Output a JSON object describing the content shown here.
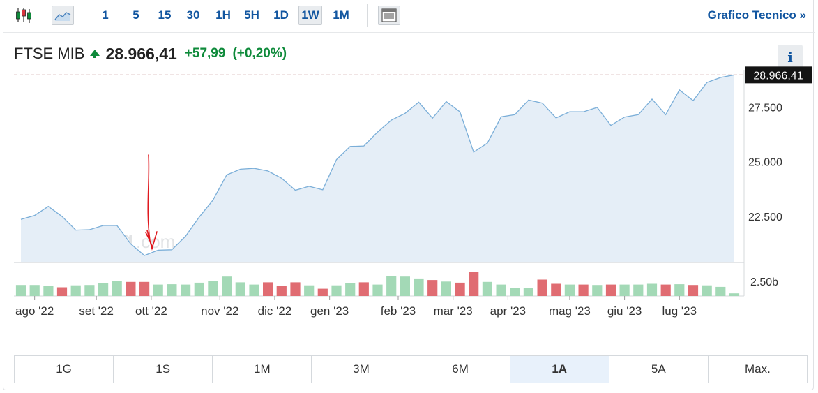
{
  "toolbar": {
    "timeframes": [
      "1",
      "5",
      "15",
      "30",
      "1H",
      "5H",
      "1D",
      "1W",
      "1M"
    ],
    "active_timeframe": "1W",
    "tech_link": "Grafico Tecnico »",
    "icons": [
      "candlestick-icon",
      "area-chart-icon",
      "table-view-icon"
    ]
  },
  "header": {
    "index_name": "FTSE MIB",
    "price": "28.966,41",
    "change": "+57,99",
    "change_pct": "(+0,20%)",
    "info_label": "i",
    "arrow": "up-arrow-icon"
  },
  "colors": {
    "accent": "#1256a0",
    "up": "#0e8a3a",
    "line": "#7aaed8",
    "area": "#e5eef7",
    "vol_up": "#a3d9b6",
    "vol_down": "#e06c72",
    "last_price_line": "#8b2a2a"
  },
  "watermark": "Investing.com",
  "range_buttons": [
    "1G",
    "1S",
    "1M",
    "3M",
    "6M",
    "1A",
    "5A",
    "Max."
  ],
  "active_range": "1A",
  "chart_data": {
    "type": "area",
    "title": "",
    "xlabel": "",
    "ylabel": "",
    "ylim": [
      20400,
      29200
    ],
    "y_ticks": [
      "22.500",
      "25.000",
      "27.500"
    ],
    "last_price_label": "28.966,41",
    "x_ticks": [
      "ago '22",
      "set '22",
      "ott '22",
      "nov '22",
      "dic '22",
      "gen '23",
      "feb '23",
      "mar '23",
      "apr '23",
      "mag '23",
      "giu '23",
      "lug '23"
    ],
    "x_tick_index": [
      1,
      5.5,
      9.5,
      14.5,
      18.5,
      22.5,
      27.5,
      31.5,
      35.5,
      40,
      44,
      48
    ],
    "series": [
      {
        "values": [
          22370,
          22550,
          22960,
          22500,
          21880,
          21900,
          22090,
          22090,
          21250,
          20720,
          20960,
          20980,
          21600,
          22480,
          23250,
          24400,
          24660,
          24700,
          24580,
          24250,
          23700,
          23880,
          23720,
          25100,
          25700,
          25720,
          26360,
          26900,
          27210,
          27720,
          26990,
          27750,
          27280,
          25440,
          25850,
          27050,
          27150,
          27820,
          27680,
          27000,
          27280,
          27280,
          27480,
          26660,
          27040,
          27150,
          27860,
          27150,
          28280,
          27790,
          28620,
          28850,
          28966
        ]
      }
    ],
    "volume": {
      "ylabel_tick": "2.50b",
      "values": [
        1.45,
        1.45,
        1.3,
        1.15,
        1.4,
        1.45,
        1.65,
        1.95,
        1.85,
        1.85,
        1.5,
        1.55,
        1.5,
        1.75,
        1.95,
        2.55,
        1.8,
        1.5,
        1.8,
        1.3,
        1.8,
        1.4,
        0.95,
        1.4,
        1.7,
        1.8,
        1.5,
        2.65,
        2.55,
        2.3,
        2.1,
        1.9,
        1.75,
        3.2,
        1.85,
        1.5,
        1.1,
        1.1,
        2.15,
        1.6,
        1.5,
        1.5,
        1.45,
        1.5,
        1.5,
        1.5,
        1.6,
        1.5,
        1.55,
        1.45,
        1.4,
        1.2,
        0.35
      ],
      "direction": [
        "up",
        "up",
        "up",
        "down",
        "up",
        "up",
        "up",
        "up",
        "down",
        "down",
        "up",
        "up",
        "up",
        "up",
        "up",
        "up",
        "up",
        "up",
        "down",
        "down",
        "down",
        "up",
        "down",
        "up",
        "up",
        "down",
        "up",
        "up",
        "up",
        "up",
        "down",
        "up",
        "down",
        "down",
        "up",
        "up",
        "up",
        "up",
        "down",
        "down",
        "up",
        "down",
        "up",
        "down",
        "up",
        "up",
        "up",
        "down",
        "up",
        "down",
        "up",
        "up",
        "up"
      ]
    }
  }
}
